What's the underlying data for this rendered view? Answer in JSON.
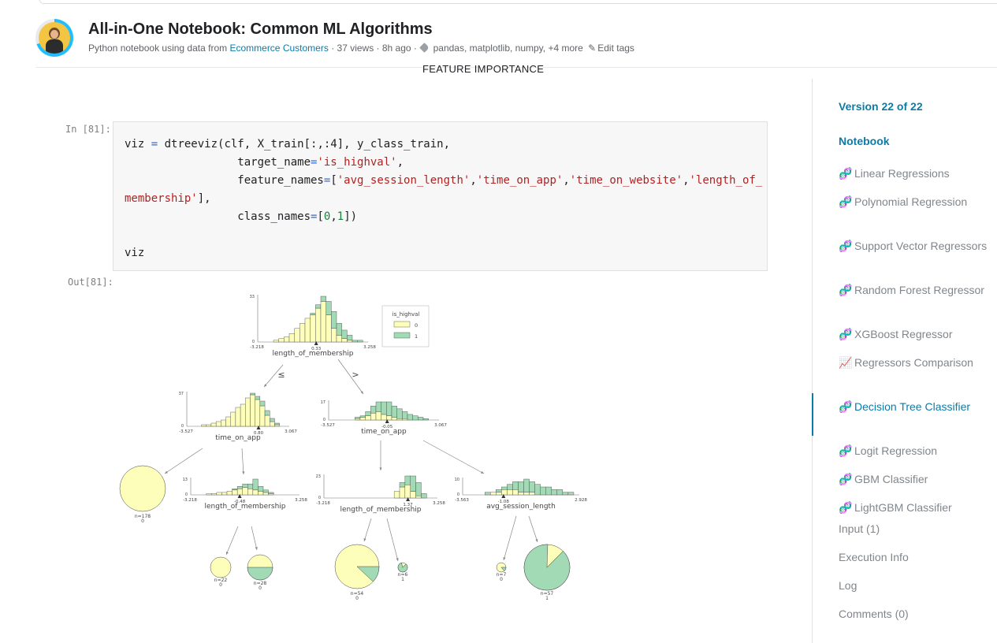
{
  "header": {
    "title": "All-in-One Notebook: Common ML Algorithms",
    "meta_prefix": "Python notebook using data from",
    "dataset_link": "Ecommerce Customers",
    "meta_stats": "· 37 views · 8h ago ·",
    "tags": "pandas, matplotlib, numpy, +4 more",
    "edit_tags": "Edit tags"
  },
  "feature_heading": "FEATURE IMPORTANCE",
  "cell": {
    "in_prompt": "In [81]:",
    "out_prompt": "Out[81]:",
    "code": {
      "l1_var": "viz ",
      "l1_op": "=",
      "l1_rest": " dtreeviz(clf, X_train[:,:4], y_class_train,",
      "l2_pre": "                 target_name",
      "l2_op": "=",
      "l2_str": "'is_highval'",
      "l2_post": ",",
      "l3_pre": "                 feature_names",
      "l3_op": "=",
      "l3_open": "[",
      "l3_s1": "'avg_session_length'",
      "l3_c1": ",",
      "l3_s2": "'time_on_app'",
      "l3_c2": ",",
      "l3_s3": "'time_on_website'",
      "l3_c3": ",",
      "l3_s4a": "'length_of_",
      "l4_s4b": "membership'",
      "l4_post": "],",
      "l5_pre": "                 class_names",
      "l5_op": "=",
      "l5_open": "[",
      "l5_n0": "0",
      "l5_comma": ",",
      "l5_n1": "1",
      "l5_close": "])",
      "l7": "viz"
    }
  },
  "tree": {
    "legend": {
      "title": "is_highval",
      "items": [
        "0",
        "1"
      ]
    },
    "colors": {
      "class0": "#fefebb",
      "class1": "#a1dab4",
      "edge": "#444444"
    },
    "branch_left": "≤",
    "branch_right": ">",
    "root": {
      "ymax": "33",
      "ymin": "0",
      "xmin": "-3.218",
      "xmax": "3.258",
      "split": "0.33",
      "feature": "length_of_membership"
    },
    "left": {
      "ymax": "37",
      "ymin": "0",
      "xmin": "-3.527",
      "xmax": "3.067",
      "split": "0.80",
      "feature": "time_on_app"
    },
    "right": {
      "ymax": "17",
      "ymin": "0",
      "xmin": "-3.527",
      "xmax": "3.067",
      "split": "-0.05",
      "feature": "time_on_app"
    },
    "ll_leaf": {
      "n": "n=178",
      "cls": "0"
    },
    "lr": {
      "ymax": "13",
      "ymin": "0",
      "xmin": "-3.218",
      "xmax": "3.258",
      "split": "-0.48",
      "feature": "length_of_membership"
    },
    "rl": {
      "ymax": "23",
      "ymin": "0",
      "xmin": "-3.218",
      "xmax": "3.258",
      "split": "1.37",
      "feature": "length_of_membership"
    },
    "rr": {
      "ymax": "10",
      "ymin": "0",
      "xmin": "-3.563",
      "xmax": "2.928",
      "split": "-1.08",
      "feature": "avg_session_length"
    },
    "leaves": [
      {
        "n": "n=22",
        "cls": "0",
        "frac1": 0.0
      },
      {
        "n": "n=28",
        "cls": "0",
        "frac1": 0.5
      },
      {
        "n": "n=54",
        "cls": "0",
        "frac1": 0.12
      },
      {
        "n": "n=6",
        "cls": "1",
        "frac1": 0.83
      },
      {
        "n": "n=7",
        "cls": "0",
        "frac1": 0.14
      },
      {
        "n": "n=57",
        "cls": "1",
        "frac1": 0.88
      }
    ]
  },
  "sidebar": {
    "version": "Version 22 of 22",
    "notebook": "Notebook",
    "items": [
      {
        "label": "Linear Regressions",
        "icon": "dna-icon"
      },
      {
        "label": "Polynomial Regression",
        "icon": "dna-icon"
      },
      {
        "label": "Support Vector Regressors",
        "icon": "dna-icon"
      },
      {
        "label": "Random Forest Regressor",
        "icon": "dna-icon"
      },
      {
        "label": "XGBoost Regressor",
        "icon": "dna-icon"
      },
      {
        "label": "Regressors Comparison",
        "icon": "chart-icon"
      },
      {
        "label": "Decision Tree Classifier",
        "icon": "dna-icon"
      },
      {
        "label": "Logit Regression",
        "icon": "dna-icon"
      },
      {
        "label": "GBM Classifier",
        "icon": "dna-icon"
      },
      {
        "label": "LightGBM Classifier",
        "icon": "dna-icon"
      }
    ],
    "input": "Input (1)",
    "execution": "Execution Info",
    "log": "Log",
    "comments": "Comments (0)"
  }
}
